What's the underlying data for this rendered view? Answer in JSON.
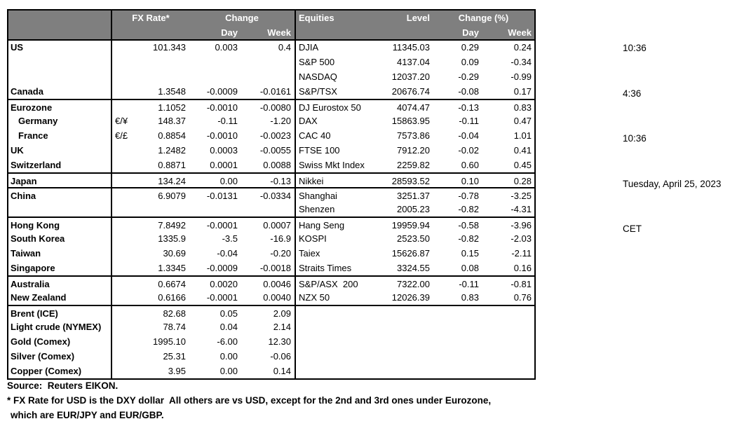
{
  "table": {
    "header": {
      "fx_rate": "FX Rate*",
      "change": "Change",
      "day": "Day",
      "week": "Week",
      "equities": "Equities",
      "level": "Level",
      "change_pct": "Change (%)"
    },
    "rows": [
      {
        "country": "US",
        "indent": false,
        "sep": false,
        "pair": "",
        "rate": "101.343",
        "day": "0.003",
        "week": "0.4",
        "equity": "DJIA",
        "level": "11345.03",
        "eday": "0.29",
        "eweek": "0.24"
      },
      {
        "country": "",
        "indent": false,
        "sep": false,
        "pair": "",
        "rate": "",
        "day": "",
        "week": "",
        "equity": "S&P 500",
        "level": "4137.04",
        "eday": "0.09",
        "eweek": "-0.34"
      },
      {
        "country": "",
        "indent": false,
        "sep": false,
        "pair": "",
        "rate": "",
        "day": "",
        "week": "",
        "equity": "NASDAQ",
        "level": "12037.20",
        "eday": "-0.29",
        "eweek": "-0.99"
      },
      {
        "country": "Canada",
        "indent": false,
        "sep": false,
        "pair": "",
        "rate": "1.3548",
        "day": "-0.0009",
        "week": "-0.0161",
        "equity": "S&P/TSX",
        "level": "20676.74",
        "eday": "-0.08",
        "eweek": "0.17"
      },
      {
        "country": "Eurozone",
        "indent": false,
        "sep": true,
        "pair": "",
        "rate": "1.1052",
        "day": "-0.0010",
        "week": "-0.0080",
        "equity": "DJ Eurostox 50",
        "level": "4074.47",
        "eday": "-0.13",
        "eweek": "0.83"
      },
      {
        "country": "Germany",
        "indent": true,
        "sep": false,
        "pair": "€/¥",
        "rate": "148.37",
        "day": "-0.11",
        "week": "-1.20",
        "equity": "DAX",
        "level": "15863.95",
        "eday": "-0.11",
        "eweek": "0.47"
      },
      {
        "country": "France",
        "indent": true,
        "sep": false,
        "pair": "€/£",
        "rate": "0.8854",
        "day": "-0.0010",
        "week": "-0.0023",
        "equity": "CAC 40",
        "level": "7573.86",
        "eday": "-0.04",
        "eweek": "1.01"
      },
      {
        "country": "UK",
        "indent": false,
        "sep": false,
        "pair": "",
        "rate": "1.2482",
        "day": "0.0003",
        "week": "-0.0055",
        "equity": "FTSE 100",
        "level": "7912.20",
        "eday": "-0.02",
        "eweek": "0.41"
      },
      {
        "country": "Switzerland",
        "indent": false,
        "sep": false,
        "pair": "",
        "rate": "0.8871",
        "day": "0.0001",
        "week": "0.0088",
        "equity": "Swiss Mkt Index",
        "level": "2259.82",
        "eday": "0.60",
        "eweek": "0.45"
      },
      {
        "country": "Japan",
        "indent": false,
        "sep": true,
        "pair": "",
        "rate": "134.24",
        "day": "0.00",
        "week": "-0.13",
        "equity": "Nikkei",
        "level": "28593.52",
        "eday": "0.10",
        "eweek": "0.28"
      },
      {
        "country": "China",
        "indent": false,
        "sep": true,
        "pair": "",
        "rate": "6.9079",
        "day": "-0.0131",
        "week": "-0.0334",
        "equity": "Shanghai",
        "level": "3251.37",
        "eday": "-0.78",
        "eweek": "-3.25"
      },
      {
        "country": "",
        "indent": false,
        "sep": false,
        "pair": "",
        "rate": "",
        "day": "",
        "week": "",
        "equity": "Shenzen",
        "level": "2005.23",
        "eday": "-0.82",
        "eweek": "-4.31"
      },
      {
        "country": "Hong Kong",
        "indent": false,
        "sep": true,
        "pair": "",
        "rate": "7.8492",
        "day": "-0.0001",
        "week": "0.0007",
        "equity": "Hang Seng",
        "level": "19959.94",
        "eday": "-0.58",
        "eweek": "-3.96"
      },
      {
        "country": "South Korea",
        "indent": false,
        "sep": false,
        "pair": "",
        "rate": "1335.9",
        "day": "-3.5",
        "week": "-16.9",
        "equity": "KOSPI",
        "level": "2523.50",
        "eday": "-0.82",
        "eweek": "-2.03"
      },
      {
        "country": "Taiwan",
        "indent": false,
        "sep": false,
        "pair": "",
        "rate": "30.69",
        "day": "-0.04",
        "week": "-0.20",
        "equity": "Taiex",
        "level": "15626.87",
        "eday": "0.15",
        "eweek": "-2.11"
      },
      {
        "country": "Singapore",
        "indent": false,
        "sep": false,
        "pair": "",
        "rate": "1.3345",
        "day": "-0.0009",
        "week": "-0.0018",
        "equity": "Straits Times",
        "level": "3324.55",
        "eday": "0.08",
        "eweek": "0.16"
      },
      {
        "country": "Australia",
        "indent": false,
        "sep": true,
        "pair": "",
        "rate": "0.6674",
        "day": "0.0020",
        "week": "0.0046",
        "equity": "S&P/ASX  200",
        "level": "7322.00",
        "eday": "-0.11",
        "eweek": "-0.81"
      },
      {
        "country": "New Zealand",
        "indent": false,
        "sep": false,
        "pair": "",
        "rate": "0.6166",
        "day": "-0.0001",
        "week": "0.0040",
        "equity": "NZX 50",
        "level": "12026.39",
        "eday": "0.83",
        "eweek": "0.76"
      },
      {
        "country": "Brent (ICE)",
        "indent": false,
        "sep": true,
        "pair": "",
        "rate": "82.68",
        "day": "0.05",
        "week": "2.09",
        "equity": "",
        "level": "",
        "eday": "",
        "eweek": ""
      },
      {
        "country": "Light crude (NYMEX)",
        "indent": false,
        "sep": false,
        "pair": "",
        "rate": "78.74",
        "day": "0.04",
        "week": "2.14",
        "equity": "",
        "level": "",
        "eday": "",
        "eweek": ""
      },
      {
        "country": "Gold (Comex)",
        "indent": false,
        "sep": false,
        "pair": "",
        "rate": "1995.10",
        "day": "-6.00",
        "week": "12.30",
        "equity": "",
        "level": "",
        "eday": "",
        "eweek": ""
      },
      {
        "country": "Silver (Comex)",
        "indent": false,
        "sep": false,
        "pair": "",
        "rate": "25.31",
        "day": "0.00",
        "week": "-0.06",
        "equity": "",
        "level": "",
        "eday": "",
        "eweek": ""
      },
      {
        "country": "Copper (Comex)",
        "indent": false,
        "sep": false,
        "pair": "",
        "rate": "3.95",
        "day": "0.00",
        "week": "0.14",
        "equity": "",
        "level": "",
        "eday": "",
        "eweek": ""
      }
    ]
  },
  "timestamps": [
    "10:36",
    "4:36",
    "10:36",
    "Tuesday, April 25, 2023",
    "CET"
  ],
  "footer": {
    "source": "Source:  Reuters EIKON.",
    "note1": "* FX Rate for USD is the DXY dollar  All others are vs USD, except for the 2nd and 3rd ones under Eurozone,",
    "note2": "which are EUR/JPY and EUR/GBP."
  },
  "colors": {
    "header_bg": "#7f7f7f",
    "header_text": "#ffffff",
    "border": "#000000"
  }
}
